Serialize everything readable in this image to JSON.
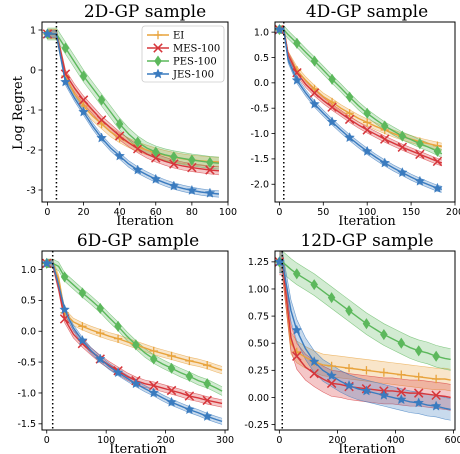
{
  "figure": {
    "ylabel": "Log Regret"
  },
  "legend": {
    "items": [
      {
        "name": "EI",
        "color": "#e8a33c",
        "marker": "plus"
      },
      {
        "name": "MES-100",
        "color": "#d6363b",
        "marker": "x"
      },
      {
        "name": "PES-100",
        "color": "#5cb85c",
        "marker": "diamond"
      },
      {
        "name": "JES-100",
        "color": "#3a7bbf",
        "marker": "star"
      }
    ]
  },
  "chart_data": [
    {
      "type": "line",
      "title": "2D-GP sample",
      "xlabel": "Iteration",
      "ylabel": "Log Regret",
      "xlim": [
        -3,
        100
      ],
      "ylim": [
        -3.3,
        1.2
      ],
      "xticks": [
        0,
        20,
        40,
        60,
        80,
        100
      ],
      "yticks": [
        1,
        0,
        -1,
        -2,
        -3
      ],
      "vline_x": 5,
      "marker_x": [
        0,
        10,
        20,
        30,
        40,
        50,
        60,
        70,
        80,
        90
      ],
      "x": [
        0,
        5,
        10,
        15,
        20,
        25,
        30,
        35,
        40,
        45,
        50,
        55,
        60,
        65,
        70,
        75,
        80,
        85,
        90,
        95
      ],
      "series": [
        {
          "name": "EI",
          "values": [
            0.9,
            0.9,
            -0.15,
            -0.6,
            -0.9,
            -1.15,
            -1.35,
            -1.55,
            -1.7,
            -1.82,
            -1.92,
            -2.0,
            -2.07,
            -2.13,
            -2.18,
            -2.22,
            -2.25,
            -2.27,
            -2.29,
            -2.3
          ],
          "band": 0.12
        },
        {
          "name": "MES-100",
          "values": [
            0.9,
            0.9,
            -0.1,
            -0.45,
            -0.75,
            -1.0,
            -1.25,
            -1.45,
            -1.65,
            -1.82,
            -1.97,
            -2.1,
            -2.2,
            -2.28,
            -2.35,
            -2.4,
            -2.44,
            -2.47,
            -2.5,
            -2.52
          ],
          "band": 0.1
        },
        {
          "name": "PES-100",
          "values": [
            0.9,
            0.9,
            0.55,
            0.2,
            -0.15,
            -0.45,
            -0.75,
            -1.05,
            -1.35,
            -1.6,
            -1.8,
            -1.95,
            -2.05,
            -2.12,
            -2.17,
            -2.21,
            -2.25,
            -2.28,
            -2.31,
            -2.33
          ],
          "band": 0.15
        },
        {
          "name": "JES-100",
          "values": [
            0.9,
            0.9,
            -0.3,
            -0.7,
            -1.05,
            -1.4,
            -1.7,
            -1.95,
            -2.15,
            -2.35,
            -2.5,
            -2.62,
            -2.73,
            -2.82,
            -2.9,
            -2.96,
            -3.01,
            -3.05,
            -3.08,
            -3.1
          ],
          "band": 0.08
        }
      ]
    },
    {
      "type": "line",
      "title": "4D-GP sample",
      "xlabel": "Iteration",
      "ylabel": "",
      "xlim": [
        -5,
        200
      ],
      "ylim": [
        -2.35,
        1.2
      ],
      "xticks": [
        0,
        50,
        100,
        150,
        200
      ],
      "yticks": [
        1.0,
        0.5,
        0.0,
        -0.5,
        -1.0,
        -1.5,
        -2.0
      ],
      "vline_x": 5,
      "marker_x": [
        0,
        20,
        40,
        60,
        80,
        100,
        120,
        140,
        160,
        180
      ],
      "x": [
        0,
        5,
        10,
        20,
        30,
        40,
        50,
        60,
        70,
        80,
        90,
        100,
        110,
        120,
        130,
        140,
        150,
        160,
        170,
        180,
        185
      ],
      "series": [
        {
          "name": "EI",
          "values": [
            1.05,
            1.05,
            0.55,
            0.25,
            0.05,
            -0.12,
            -0.27,
            -0.38,
            -0.5,
            -0.6,
            -0.7,
            -0.78,
            -0.86,
            -0.93,
            -1.0,
            -1.06,
            -1.11,
            -1.16,
            -1.2,
            -1.24,
            -1.26
          ],
          "band": 0.07
        },
        {
          "name": "MES-100",
          "values": [
            1.05,
            1.05,
            0.55,
            0.2,
            -0.03,
            -0.2,
            -0.35,
            -0.48,
            -0.6,
            -0.72,
            -0.83,
            -0.93,
            -1.02,
            -1.11,
            -1.19,
            -1.27,
            -1.34,
            -1.41,
            -1.48,
            -1.55,
            -1.58
          ],
          "band": 0.06
        },
        {
          "name": "PES-100",
          "values": [
            1.05,
            1.05,
            0.95,
            0.78,
            0.6,
            0.43,
            0.25,
            0.07,
            -0.1,
            -0.28,
            -0.45,
            -0.6,
            -0.73,
            -0.85,
            -0.95,
            -1.05,
            -1.12,
            -1.2,
            -1.27,
            -1.35,
            -1.4
          ],
          "band": 0.08
        },
        {
          "name": "JES-100",
          "values": [
            1.05,
            1.05,
            0.45,
            0.05,
            -0.2,
            -0.42,
            -0.6,
            -0.77,
            -0.93,
            -1.08,
            -1.22,
            -1.35,
            -1.47,
            -1.58,
            -1.68,
            -1.77,
            -1.86,
            -1.94,
            -2.01,
            -2.08,
            -2.1
          ],
          "band": 0.06
        }
      ]
    },
    {
      "type": "line",
      "title": "6D-GP sample",
      "xlabel": "Iteration",
      "ylabel": "",
      "xlim": [
        -8,
        305
      ],
      "ylim": [
        -1.6,
        1.3
      ],
      "xticks": [
        0,
        100,
        200,
        300
      ],
      "yticks": [
        1.0,
        0.5,
        0.0,
        -0.5,
        -1.0,
        -1.5
      ],
      "vline_x": 10,
      "marker_x": [
        0,
        30,
        60,
        90,
        120,
        150,
        180,
        210,
        240,
        270
      ],
      "x": [
        0,
        10,
        20,
        30,
        45,
        60,
        75,
        90,
        105,
        120,
        135,
        150,
        165,
        180,
        195,
        210,
        225,
        240,
        255,
        270,
        285,
        295
      ],
      "series": [
        {
          "name": "EI",
          "values": [
            1.1,
            1.1,
            0.85,
            0.3,
            0.15,
            0.08,
            0.02,
            -0.03,
            -0.08,
            -0.12,
            -0.17,
            -0.22,
            -0.27,
            -0.32,
            -0.36,
            -0.4,
            -0.44,
            -0.48,
            -0.51,
            -0.55,
            -0.6,
            -0.63
          ],
          "band": 0.06
        },
        {
          "name": "MES-100",
          "values": [
            1.1,
            1.1,
            0.7,
            0.2,
            -0.05,
            -0.2,
            -0.33,
            -0.45,
            -0.55,
            -0.64,
            -0.73,
            -0.8,
            -0.85,
            -0.88,
            -0.92,
            -0.96,
            -1.0,
            -1.05,
            -1.08,
            -1.12,
            -1.15,
            -1.17
          ],
          "band": 0.06
        },
        {
          "name": "PES-100",
          "values": [
            1.1,
            1.1,
            1.05,
            0.88,
            0.75,
            0.62,
            0.5,
            0.37,
            0.22,
            0.08,
            -0.08,
            -0.22,
            -0.35,
            -0.45,
            -0.53,
            -0.6,
            -0.67,
            -0.73,
            -0.8,
            -0.85,
            -0.92,
            -0.97
          ],
          "band": 0.07
        },
        {
          "name": "JES-100",
          "values": [
            1.1,
            1.1,
            0.75,
            0.35,
            0.05,
            -0.15,
            -0.32,
            -0.45,
            -0.57,
            -0.67,
            -0.76,
            -0.85,
            -0.93,
            -1.0,
            -1.08,
            -1.15,
            -1.21,
            -1.27,
            -1.32,
            -1.38,
            -1.43,
            -1.46
          ],
          "band": 0.05
        }
      ]
    },
    {
      "type": "line",
      "title": "12D-GP sample",
      "xlabel": "Iteration",
      "ylabel": "",
      "xlim": [
        -15,
        605
      ],
      "ylim": [
        -0.3,
        1.35
      ],
      "xticks": [
        0,
        200,
        400,
        600
      ],
      "yticks": [
        1.25,
        1.0,
        0.75,
        0.5,
        0.25,
        0.0,
        -0.25
      ],
      "vline_x": 10,
      "marker_x": [
        0,
        60,
        120,
        180,
        240,
        300,
        360,
        420,
        480,
        540
      ],
      "x": [
        0,
        10,
        40,
        60,
        90,
        120,
        150,
        180,
        210,
        240,
        270,
        300,
        330,
        360,
        390,
        420,
        450,
        480,
        510,
        540,
        570,
        590
      ],
      "series": [
        {
          "name": "EI",
          "values": [
            1.25,
            1.25,
            0.5,
            0.42,
            0.37,
            0.33,
            0.3,
            0.29,
            0.28,
            0.27,
            0.26,
            0.25,
            0.24,
            0.23,
            0.22,
            0.21,
            0.2,
            0.19,
            0.18,
            0.17,
            0.17,
            0.16
          ],
          "band": 0.1
        },
        {
          "name": "MES-100",
          "values": [
            1.25,
            1.25,
            0.55,
            0.38,
            0.28,
            0.22,
            0.17,
            0.13,
            0.12,
            0.1,
            0.09,
            0.08,
            0.07,
            0.06,
            0.06,
            0.05,
            0.04,
            0.04,
            0.03,
            0.02,
            0.01,
            0.0
          ],
          "band": 0.12
        },
        {
          "name": "PES-100",
          "values": [
            1.25,
            1.25,
            1.18,
            1.14,
            1.09,
            1.04,
            0.98,
            0.92,
            0.86,
            0.8,
            0.74,
            0.68,
            0.63,
            0.58,
            0.54,
            0.5,
            0.46,
            0.43,
            0.41,
            0.38,
            0.36,
            0.35
          ],
          "band": 0.1
        },
        {
          "name": "JES-100",
          "values": [
            1.25,
            1.25,
            0.8,
            0.62,
            0.45,
            0.33,
            0.25,
            0.2,
            0.15,
            0.11,
            0.08,
            0.06,
            0.04,
            0.02,
            0.0,
            -0.02,
            -0.04,
            -0.05,
            -0.07,
            -0.08,
            -0.1,
            -0.11
          ],
          "band": 0.1
        }
      ]
    }
  ]
}
